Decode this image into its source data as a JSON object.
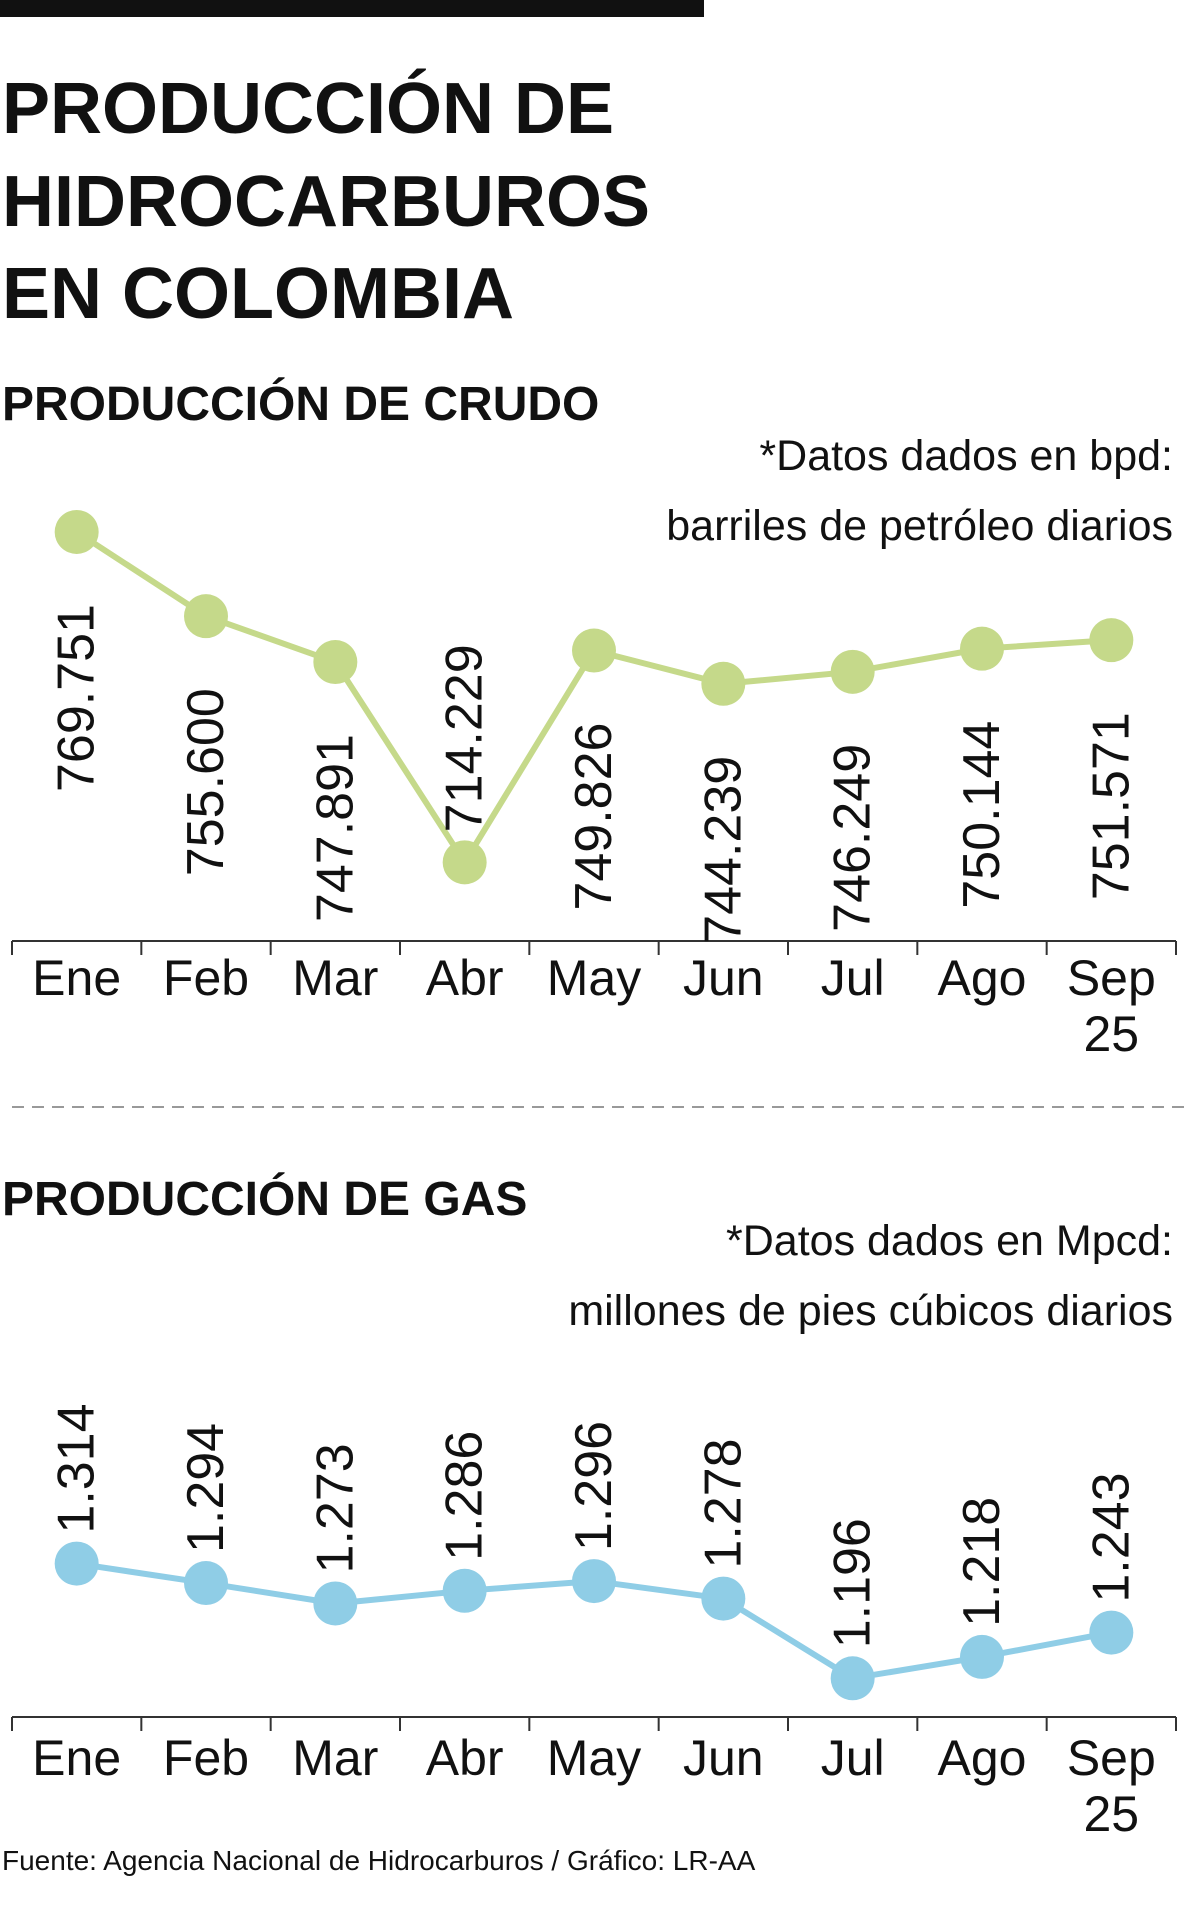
{
  "title": [
    "PRODUCCIÓN DE",
    "HIDROCARBUROS",
    "EN COLOMBIA"
  ],
  "chart_data": [
    {
      "type": "line",
      "title": "PRODUCCIÓN DE CRUDO",
      "note": [
        "*Datos dados en bpd:",
        "barriles de petróleo diarios"
      ],
      "categories": [
        "Ene",
        "Feb",
        "Mar",
        "Abr",
        "May",
        "Jun",
        "Jul",
        "Ago",
        "Sep 25"
      ],
      "values": [
        769751,
        755600,
        747891,
        714229,
        749826,
        744239,
        746249,
        750144,
        751571
      ],
      "value_labels": [
        "769.751",
        "755.600",
        "747.891",
        "714.229",
        "749.826",
        "744.239",
        "746.249",
        "750.144",
        "751.571"
      ],
      "color": "#c5d98a",
      "ylim": [
        700000,
        780000
      ]
    },
    {
      "type": "line",
      "title": "PRODUCCIÓN DE GAS",
      "note": [
        "*Datos dados en Mpcd:",
        "millones de pies cúbicos diarios"
      ],
      "categories": [
        "Ene",
        "Feb",
        "Mar",
        "Abr",
        "May",
        "Jun",
        "Jul",
        "Ago",
        "Sep 25"
      ],
      "values": [
        1314,
        1294,
        1273,
        1286,
        1296,
        1278,
        1196,
        1218,
        1243
      ],
      "value_labels": [
        "1.314",
        "1.294",
        "1.273",
        "1.286",
        "1.296",
        "1.278",
        "1.196",
        "1.218",
        "1.243"
      ],
      "color": "#8fcde6",
      "ylim": [
        1150,
        1400
      ]
    }
  ],
  "source": "Fuente: Agencia Nacional de Hidrocarburos / Gráfico: LR-AA"
}
